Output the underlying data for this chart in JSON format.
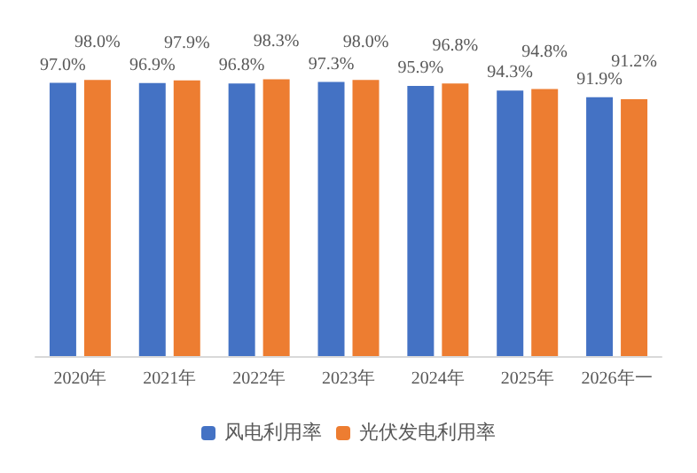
{
  "chart_data": {
    "type": "bar",
    "categories": [
      "2020年",
      "2021年",
      "2022年",
      "2023年",
      "2024年",
      "2025年",
      "2026年一"
    ],
    "series": [
      {
        "name": "风电利用率",
        "color": "#4472c4",
        "values": [
          97.0,
          96.9,
          96.8,
          97.3,
          95.9,
          94.3,
          91.9
        ],
        "value_labels": [
          "97.0%",
          "96.9%",
          "96.8%",
          "97.3%",
          "95.9%",
          "94.3%",
          "91.9%"
        ]
      },
      {
        "name": "光伏发电利用率",
        "color": "#ed7d31",
        "values": [
          98.0,
          97.9,
          98.3,
          98.0,
          96.8,
          94.8,
          91.2
        ],
        "value_labels": [
          "98.0%",
          "97.9%",
          "98.3%",
          "98.0%",
          "96.8%",
          "94.8%",
          "91.2%"
        ]
      }
    ],
    "tick_labels": "x",
    "legend": "bottom",
    "grid": false
  }
}
